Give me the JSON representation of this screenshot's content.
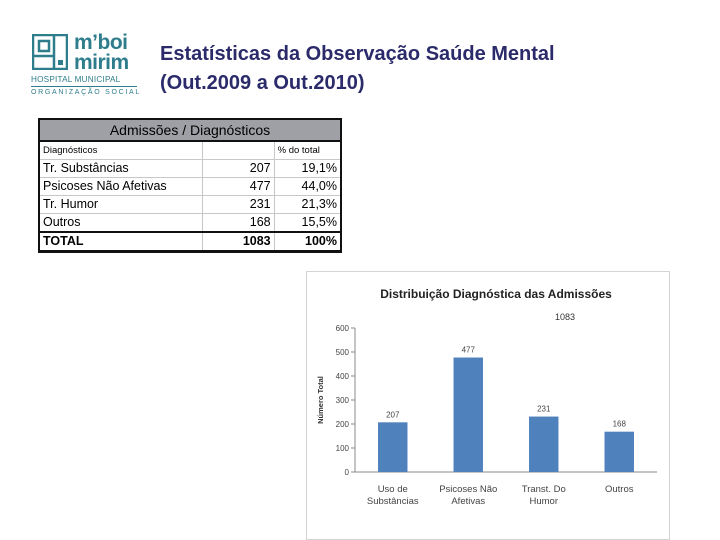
{
  "logo": {
    "brand_line1": "m’boi",
    "brand_line2": "mirim",
    "subtitle": "HOSPITAL MUNICIPAL",
    "org": "ORGANIZAÇÃO SOCIAL"
  },
  "title": {
    "line1": "Estatísticas da Observação Saúde Mental",
    "line2": "(Out.2009 a Out.2010)"
  },
  "table": {
    "caption": "Admissões / Diagnósticos",
    "col_diag": "Diagnósticos",
    "col_pct": "% do total",
    "rows": [
      {
        "label": "Tr. Substâncias",
        "count": "207",
        "pct": "19,1%"
      },
      {
        "label": "Psicoses Não Afetivas",
        "count": "477",
        "pct": "44,0%"
      },
      {
        "label": "Tr. Humor",
        "count": "231",
        "pct": "21,3%"
      },
      {
        "label": "Outros",
        "count": "168",
        "pct": "15,5%"
      }
    ],
    "total": {
      "label": "TOTAL",
      "count": "1083",
      "pct": "100%"
    }
  },
  "colors": {
    "bar": "#4f81bd",
    "logo": "#2e7d8c",
    "title": "#2b2b6b"
  },
  "chart_data": {
    "type": "bar",
    "title": "Distribuição Diagnóstica das Admissões",
    "annotation": "1083",
    "ylabel": "Número Total",
    "xlabel": "",
    "ylim": [
      0,
      600
    ],
    "yticks": [
      0,
      100,
      200,
      300,
      400,
      500,
      600
    ],
    "categories": [
      [
        "Uso de",
        "Substâncias"
      ],
      [
        "Psicoses Não",
        "Afetivas"
      ],
      [
        "Transt. Do",
        "Humor"
      ],
      [
        "Outros"
      ]
    ],
    "values": [
      207,
      477,
      231,
      168
    ],
    "grid": false,
    "legend": "none"
  }
}
